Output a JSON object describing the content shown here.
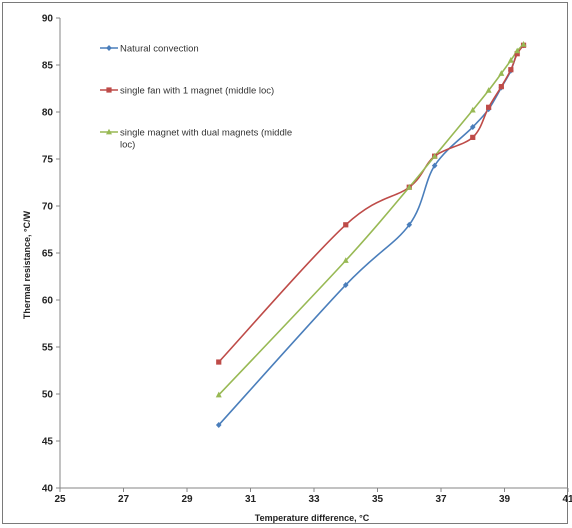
{
  "chart_data": {
    "type": "line",
    "title": "",
    "xlabel": "Temperature difference, °C",
    "ylabel": "Thermal resistance, °C/W",
    "xlim": [
      25,
      41
    ],
    "ylim": [
      40,
      90
    ],
    "x_ticks": [
      "25",
      "27",
      "29",
      "31",
      "33",
      "35",
      "37",
      "39",
      "41"
    ],
    "y_ticks": [
      "40",
      "45",
      "50",
      "55",
      "60",
      "65",
      "70",
      "75",
      "80",
      "85",
      "90"
    ],
    "grid": false,
    "smooth": true,
    "legend": "top-left",
    "series": [
      {
        "name": "Natural convection",
        "color": "#4a7ebb",
        "marker": "diamond",
        "points": [
          [
            30,
            46.7
          ],
          [
            34,
            61.6
          ],
          [
            36,
            68.0
          ],
          [
            36.8,
            74.3
          ],
          [
            38,
            78.4
          ],
          [
            38.5,
            80.3
          ],
          [
            38.9,
            82.6
          ],
          [
            39.2,
            84.4
          ],
          [
            39.4,
            86.3
          ],
          [
            39.6,
            87.1
          ]
        ]
      },
      {
        "name": "single fan with 1 magnet (middle loc)",
        "color": "#be4b48",
        "marker": "square",
        "points": [
          [
            30,
            53.4
          ],
          [
            34,
            68.0
          ],
          [
            36,
            72.0
          ],
          [
            36.8,
            75.3
          ],
          [
            38,
            77.3
          ],
          [
            38.5,
            80.5
          ],
          [
            38.9,
            82.7
          ],
          [
            39.2,
            84.5
          ],
          [
            39.4,
            86.2
          ],
          [
            39.6,
            87.1
          ]
        ]
      },
      {
        "name": "single magnet with dual magnets (middle loc)",
        "color": "#98b954",
        "marker": "triangle",
        "points": [
          [
            30,
            49.9
          ],
          [
            34,
            64.2
          ],
          [
            36,
            72.0
          ],
          [
            36.8,
            75.3
          ],
          [
            38,
            80.2
          ],
          [
            38.5,
            82.3
          ],
          [
            38.9,
            84.1
          ],
          [
            39.2,
            85.5
          ],
          [
            39.4,
            86.5
          ],
          [
            39.6,
            87.2
          ]
        ]
      }
    ]
  }
}
